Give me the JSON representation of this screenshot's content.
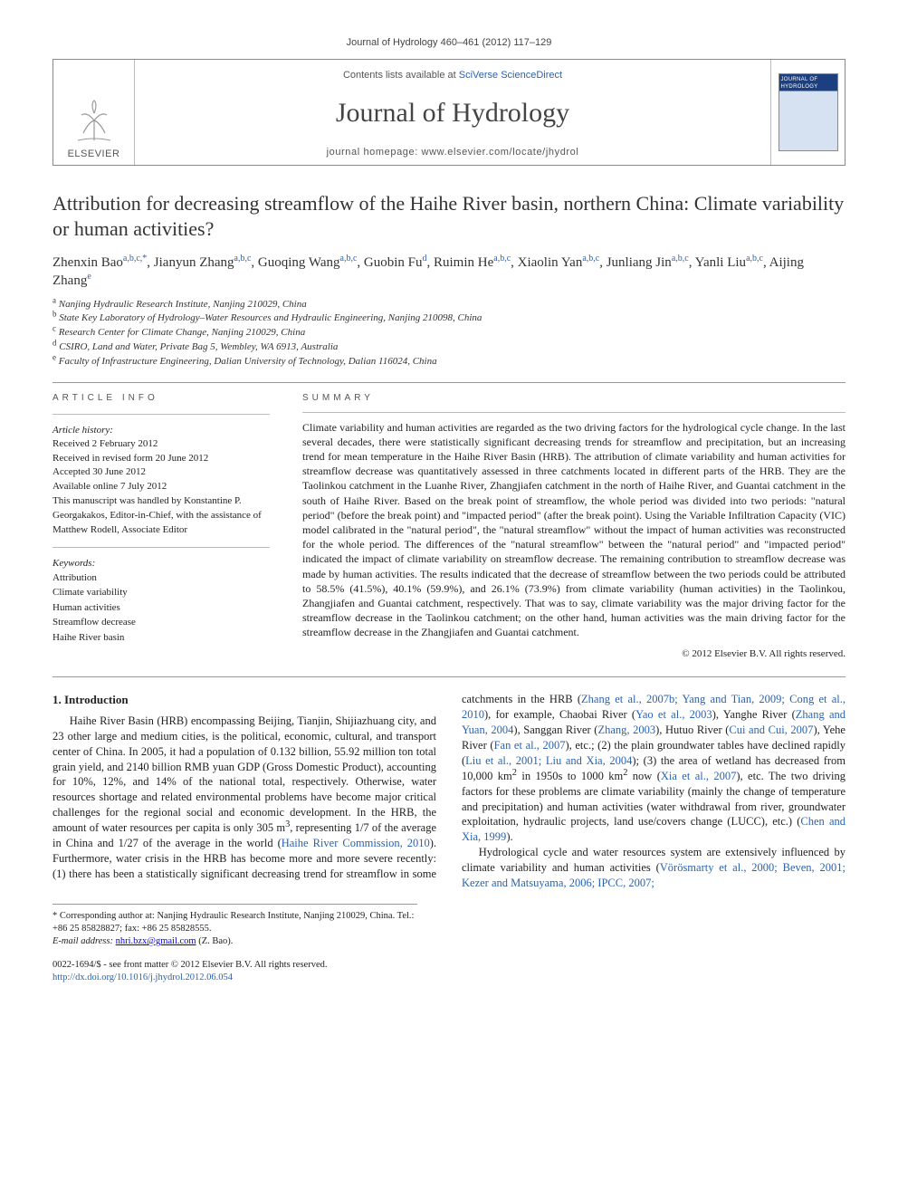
{
  "colors": {
    "link": "#2a63b0",
    "text": "#222",
    "rule": "#999",
    "masthead_border": "#888",
    "cover_top": "#1c3f80",
    "cover_bottom": "#d6e2f2"
  },
  "running_head": "Journal of Hydrology 460–461 (2012) 117–129",
  "masthead": {
    "publisher": "ELSEVIER",
    "contents_prefix": "Contents lists available at ",
    "contents_link_text": "SciVerse ScienceDirect",
    "journal_name": "Journal of Hydrology",
    "homepage_label": "journal homepage: ",
    "homepage_url": "www.elsevier.com/locate/jhydrol",
    "cover_title": "JOURNAL OF HYDROLOGY"
  },
  "title": "Attribution for decreasing streamflow of the Haihe River basin, northern China: Climate variability or human activities?",
  "authors_html": "Zhenxin Bao<sup>a,b,c,*</sup>, Jianyun Zhang<sup>a,b,c</sup>, Guoqing Wang<sup>a,b,c</sup>, Guobin Fu<sup>d</sup>, Ruimin He<sup>a,b,c</sup>, Xiaolin Yan<sup>a,b,c</sup>, Junliang Jin<sup>a,b,c</sup>, Yanli Liu<sup>a,b,c</sup>, Aijing Zhang<sup>e</sup>",
  "affiliations": [
    {
      "sup": "a",
      "text": "Nanjing Hydraulic Research Institute, Nanjing 210029, China"
    },
    {
      "sup": "b",
      "text": "State Key Laboratory of Hydrology–Water Resources and Hydraulic Engineering, Nanjing 210098, China"
    },
    {
      "sup": "c",
      "text": "Research Center for Climate Change, Nanjing 210029, China"
    },
    {
      "sup": "d",
      "text": "CSIRO, Land and Water, Private Bag 5, Wembley, WA 6913, Australia"
    },
    {
      "sup": "e",
      "text": "Faculty of Infrastructure Engineering, Dalian University of Technology, Dalian 116024, China"
    }
  ],
  "labels": {
    "article_info": "ARTICLE INFO",
    "summary": "SUMMARY"
  },
  "history": {
    "head": "Article history:",
    "lines": [
      "Received 2 February 2012",
      "Received in revised form 20 June 2012",
      "Accepted 30 June 2012",
      "Available online 7 July 2012",
      "This manuscript was handled by Konstantine P. Georgakakos, Editor-in-Chief, with the assistance of Matthew Rodell, Associate Editor"
    ]
  },
  "keywords": {
    "head": "Keywords:",
    "items": [
      "Attribution",
      "Climate variability",
      "Human activities",
      "Streamflow decrease",
      "Haihe River basin"
    ]
  },
  "summary": "Climate variability and human activities are regarded as the two driving factors for the hydrological cycle change. In the last several decades, there were statistically significant decreasing trends for streamflow and precipitation, but an increasing trend for mean temperature in the Haihe River Basin (HRB). The attribution of climate variability and human activities for streamflow decrease was quantitatively assessed in three catchments located in different parts of the HRB. They are the Taolinkou catchment in the Luanhe River, Zhangjiafen catchment in the north of Haihe River, and Guantai catchment in the south of Haihe River. Based on the break point of streamflow, the whole period was divided into two periods: \"natural period\" (before the break point) and \"impacted period\" (after the break point). Using the Variable Infiltration Capacity (VIC) model calibrated in the \"natural period\", the \"natural streamflow\" without the impact of human activities was reconstructed for the whole period. The differences of the \"natural streamflow\" between the \"natural period\" and \"impacted period\" indicated the impact of climate variability on streamflow decrease. The remaining contribution to streamflow decrease was made by human activities. The results indicated that the decrease of streamflow between the two periods could be attributed to 58.5% (41.5%), 40.1% (59.9%), and 26.1% (73.9%) from climate variability (human activities) in the Taolinkou, Zhangjiafen and Guantai catchment, respectively. That was to say, climate variability was the major driving factor for the streamflow decrease in the Taolinkou catchment; on the other hand, human activities was the main driving factor for the streamflow decrease in the Zhangjiafen and Guantai catchment.",
  "copyright": "© 2012 Elsevier B.V. All rights reserved.",
  "section1": {
    "heading": "1. Introduction",
    "p1_html": "Haihe River Basin (HRB) encompassing Beijing, Tianjin, Shijiazhuang city, and 23 other large and medium cities, is the political, economic, cultural, and transport center of China. In 2005, it had a population of 0.132 billion, 55.92 million ton total grain yield, and 2140 billion RMB yuan GDP (Gross Domestic Product), accounting for 10%, 12%, and 14% of the national total, respectively. Otherwise, water resources shortage and related environmental problems have become major critical challenges for the regional social and economic development. In the HRB, the amount of water resources per capita is only 305 m<sup>3</sup>, representing 1/7 of the average in China and 1/27 of the average in the world (<a href=\"#\">Haihe River Commission, 2010</a>). Furthermore, water crisis in the HRB has become more and more severe recently: (1) there has been a statistically significant decreasing trend for streamflow in some catchments in the HRB (<a href=\"#\">Zhang et al., 2007b; Yang and Tian, 2009; Cong et al., 2010</a>), for example, Chaobai River (<a href=\"#\">Yao et al., 2003</a>), Yanghe River (<a href=\"#\">Zhang and Yuan, 2004</a>), Sanggan River (<a href=\"#\">Zhang, 2003</a>), Hutuo River (<a href=\"#\">Cui and Cui, 2007</a>), Yehe River (<a href=\"#\">Fan et al., 2007</a>), etc.; (2) the plain groundwater tables have declined rapidly (<a href=\"#\">Liu et al., 2001; Liu and Xia, 2004</a>); (3) the area of wetland has decreased from 10,000 km<sup>2</sup> in 1950s to 1000 km<sup>2</sup> now (<a href=\"#\">Xia et al., 2007</a>), etc. The two driving factors for these problems are climate variability (mainly the change of temperature and precipitation) and human activities (water withdrawal from river, groundwater exploitation, hydraulic projects, land use/covers change (LUCC), etc.) (<a href=\"#\">Chen and Xia, 1999</a>).",
    "p2_html": "Hydrological cycle and water resources system are extensively influenced by climate variability and human activities (<a href=\"#\">Vörösmarty et al., 2000; Beven, 2001; Kezer and Matsuyama, 2006; IPCC, 2007;</a>"
  },
  "footnote": {
    "corr": "* Corresponding author at: Nanjing Hydraulic Research Institute, Nanjing 210029, China. Tel.: +86 25 85828827; fax: +86 25 85828555.",
    "email_label": "E-mail address:",
    "email": "nhri.bzx@gmail.com",
    "email_suffix": "(Z. Bao)."
  },
  "bottom": {
    "line1": "0022-1694/$ - see front matter © 2012 Elsevier B.V. All rights reserved.",
    "doi": "http://dx.doi.org/10.1016/j.jhydrol.2012.06.054"
  }
}
